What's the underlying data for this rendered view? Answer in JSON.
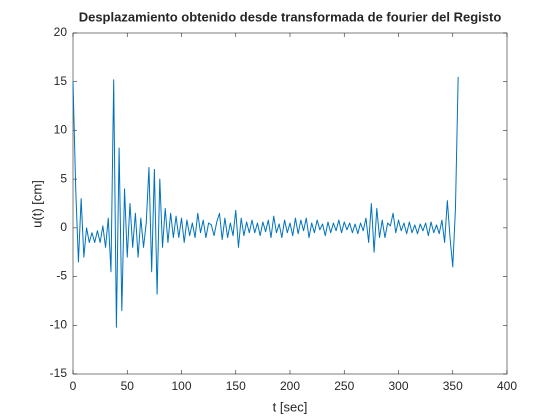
{
  "chart_data": {
    "type": "line",
    "title": "Desplazamiento obtenido desde transformada de fourier del Registo",
    "x_label": "t [sec]",
    "y_label": "u(t) [cm]",
    "x": [
      0,
      2.5,
      5,
      7.5,
      10,
      12.5,
      15,
      17.5,
      20,
      22.5,
      25,
      27.5,
      30,
      32.5,
      35,
      37.5,
      40,
      42.5,
      45,
      47.5,
      50,
      52.5,
      55,
      57.5,
      60,
      62.5,
      65,
      67.5,
      70,
      72.5,
      75,
      77.5,
      80,
      82.5,
      85,
      87.5,
      90,
      92.5,
      95,
      97.5,
      100,
      102.5,
      105,
      107.5,
      110,
      112.5,
      115,
      117.5,
      120,
      122.5,
      125,
      127.5,
      130,
      132.5,
      135,
      137.5,
      140,
      142.5,
      145,
      147.5,
      150,
      152.5,
      155,
      157.5,
      160,
      162.5,
      165,
      167.5,
      170,
      172.5,
      175,
      177.5,
      180,
      182.5,
      185,
      187.5,
      190,
      192.5,
      195,
      197.5,
      200,
      202.5,
      205,
      207.5,
      210,
      212.5,
      215,
      217.5,
      220,
      222.5,
      225,
      227.5,
      230,
      232.5,
      235,
      237.5,
      240,
      242.5,
      245,
      247.5,
      250,
      252.5,
      255,
      257.5,
      260,
      262.5,
      265,
      267.5,
      270,
      272.5,
      275,
      277.5,
      280,
      282.5,
      285,
      287.5,
      290,
      292.5,
      295,
      297.5,
      300,
      302.5,
      305,
      307.5,
      310,
      312.5,
      315,
      317.5,
      320,
      322.5,
      325,
      327.5,
      330,
      332.5,
      335,
      337.5,
      340,
      342.5,
      345,
      347.5,
      350,
      352.5,
      355
    ],
    "series": [
      {
        "color": "#0072bd",
        "values": [
          15,
          4,
          -3.5,
          3,
          -3,
          0,
          -1.5,
          -0.5,
          -1.5,
          -0.3,
          -1.5,
          0.2,
          -2,
          1,
          -4.5,
          15.2,
          -10.2,
          8.2,
          -8.5,
          4,
          -3,
          2.5,
          -2,
          1.5,
          -3,
          1,
          -2,
          0.5,
          6.2,
          -4.5,
          6,
          -6.8,
          5,
          -2,
          2,
          -1.5,
          1.5,
          -1,
          1.2,
          -1,
          1,
          -1.5,
          0.8,
          -0.8,
          0.5,
          -1,
          1.5,
          -0.5,
          0.8,
          -1,
          0.5,
          0.3,
          -0.8,
          0.6,
          1.5,
          -1.2,
          1,
          -1,
          0.5,
          -0.8,
          1.8,
          -2,
          1,
          -0.8,
          0.6,
          -0.5,
          0.8,
          -0.5,
          0.5,
          -0.8,
          0.6,
          -0.4,
          0.8,
          -1,
          1.2,
          -0.5,
          0.4,
          -1,
          0.8,
          -0.5,
          0.5,
          -0.8,
          1,
          -0.6,
          0.8,
          -0.3,
          1,
          -1,
          0.5,
          -0.5,
          0.8,
          -0.2,
          0.4,
          -0.8,
          0.6,
          -0.5,
          0.5,
          -0.3,
          0.8,
          -0.5,
          0.6,
          -0.2,
          0.5,
          -0.5,
          0.4,
          -0.6,
          0.5,
          -0.3,
          1,
          -1.5,
          2.5,
          -2.5,
          2,
          -1,
          0.8,
          -1,
          0.5,
          0.2,
          1.5,
          -0.5,
          0.8,
          -0.3,
          0.5,
          -0.6,
          0.6,
          -0.5,
          0.3,
          -0.6,
          0.4,
          -0.3,
          0.5,
          -0.8,
          0.6,
          -0.5,
          0.3,
          -0.6,
          0.8,
          -1.5,
          2.8,
          -1,
          -4,
          2,
          15.5
        ]
      }
    ],
    "xlim": [
      0,
      400
    ],
    "xticks": [
      0,
      50,
      100,
      150,
      200,
      250,
      300,
      350,
      400
    ],
    "ylim": [
      -15,
      20
    ],
    "yticks": [
      -15,
      -10,
      -5,
      0,
      5,
      10,
      15,
      20
    ]
  }
}
